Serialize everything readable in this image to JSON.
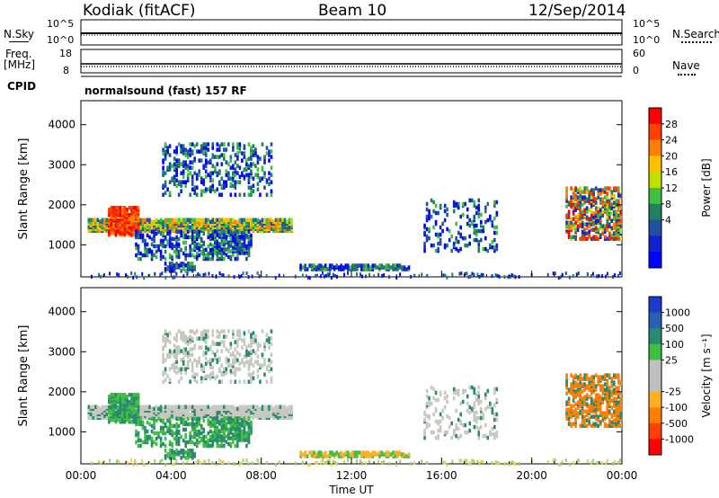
{
  "header": {
    "site": "Kodiak (fitACF)",
    "beam": "Beam 10",
    "date": "12/Sep/2014"
  },
  "top_panels": {
    "nsky_label": "N.Sky",
    "nsearch_label": "N.Search",
    "nsky_ticks": [
      "10^5",
      "10^0"
    ],
    "nsearch_ticks": [
      "10^5",
      "10^0"
    ],
    "freq_label": "Freq.",
    "freq_unit": "[MHz]",
    "freq_ticks": [
      "18",
      "8"
    ],
    "nave_label": "Nave",
    "nave_ticks": [
      "60",
      "0"
    ],
    "cpid_label": "CPID",
    "cpid_text": "normalsound (fast) 157 RF"
  },
  "chart_data": [
    {
      "type": "heatmap",
      "name": "power",
      "ylabel": "Slant Range [km]",
      "ylim": [
        200,
        4600
      ],
      "yticks": [
        1000,
        2000,
        3000,
        4000
      ],
      "xlim": [
        0,
        24
      ],
      "colorbar": {
        "label": "Power [dB]",
        "ticks": [
          "28",
          "24",
          "20",
          "16",
          "12",
          "8",
          "4"
        ],
        "colors": [
          "#ff0000",
          "#ff4000",
          "#ff8000",
          "#ffc000",
          "#c0e000",
          "#40c040",
          "#208060",
          "#2050a0",
          "#1020d0",
          "#0000ff"
        ]
      }
    },
    {
      "type": "heatmap",
      "name": "velocity",
      "ylabel": "Slant Range [km]",
      "ylim": [
        200,
        4600
      ],
      "yticks": [
        1000,
        2000,
        3000,
        4000
      ],
      "xlim": [
        0,
        24
      ],
      "xlabel": "Time UT",
      "xticks": [
        "00:00",
        "04:00",
        "08:00",
        "12:00",
        "16:00",
        "20:00",
        "00:00"
      ],
      "colorbar": {
        "label": "Velocity [m s⁻¹]",
        "ticks": [
          "1000",
          "500",
          "100",
          "25",
          "-25",
          "-100",
          "-500",
          "-1000"
        ],
        "colors": [
          "#1a3cc8",
          "#2a60b0",
          "#2a8a70",
          "#40c040",
          "#c0c0c0",
          "#c0c0c0",
          "#ffb020",
          "#ff8000",
          "#ff4000",
          "#ff0000"
        ]
      }
    }
  ]
}
